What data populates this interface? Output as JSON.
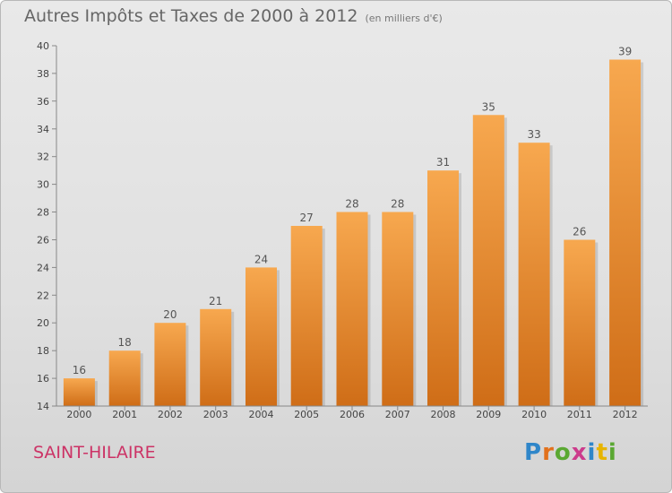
{
  "header": {
    "title": "Autres Impôts et Taxes de 2000 à 2012",
    "subtitle": "(en milliers d'€)"
  },
  "footer": {
    "commune": "SAINT-HILAIRE",
    "logo_letters": [
      "P",
      "r",
      "o",
      "x",
      "i",
      "t",
      "i"
    ]
  },
  "chart_data": {
    "type": "bar",
    "title": "Autres Impôts et Taxes de 2000 à 2012",
    "subtitle": "(en milliers d'€)",
    "xlabel": "",
    "ylabel": "",
    "categories": [
      "2000",
      "2001",
      "2002",
      "2003",
      "2004",
      "2005",
      "2006",
      "2007",
      "2008",
      "2009",
      "2010",
      "2011",
      "2012"
    ],
    "values": [
      16,
      18,
      20,
      21,
      24,
      27,
      28,
      28,
      31,
      35,
      33,
      26,
      39
    ],
    "ylim": [
      14,
      40
    ],
    "yticks": [
      14,
      16,
      18,
      20,
      22,
      24,
      26,
      28,
      30,
      32,
      34,
      36,
      38,
      40
    ],
    "grid": false,
    "legend": "none",
    "colors": {
      "bar_light": "#f7a84f",
      "bar_dark": "#cf6d17",
      "axis": "#888888"
    }
  }
}
